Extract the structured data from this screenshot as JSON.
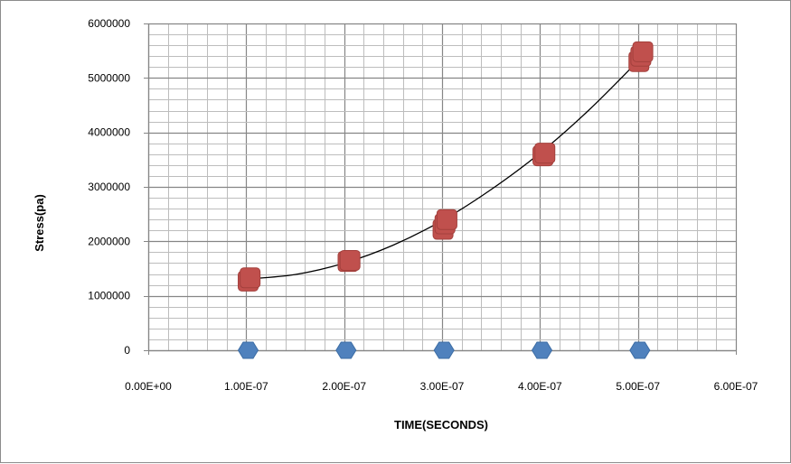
{
  "chart_data": {
    "type": "scatter",
    "title": "",
    "xlabel": "TIME(SECONDS)",
    "ylabel": "Stress(pa)",
    "xlim": [
      0,
      6e-07
    ],
    "ylim": [
      0,
      6000000
    ],
    "x_major_step": 1e-07,
    "x_minor_per_major": 5,
    "y_major_step": 1000000,
    "y_minor_per_major": 5,
    "grid": true,
    "legend": "none",
    "x_tick_labels": [
      "0.00E+00",
      "1.00E-07",
      "2.00E-07",
      "3.00E-07",
      "4.00E-07",
      "5.00E-07",
      "6.00E-07"
    ],
    "y_tick_labels": [
      "0",
      "1000000",
      "2000000",
      "3000000",
      "4000000",
      "5000000",
      "6000000"
    ],
    "series": [
      {
        "marker": "square",
        "color": "#c0504d",
        "points": [
          {
            "x": 1.02e-07,
            "y": 1270000
          },
          {
            "x": 1.04e-07,
            "y": 1330000
          },
          {
            "x": 2.04e-07,
            "y": 1630000
          },
          {
            "x": 2.06e-07,
            "y": 1650000
          },
          {
            "x": 3.01e-07,
            "y": 2220000
          },
          {
            "x": 3.03e-07,
            "y": 2320000
          },
          {
            "x": 3.05e-07,
            "y": 2400000
          },
          {
            "x": 4.03e-07,
            "y": 3570000
          },
          {
            "x": 4.05e-07,
            "y": 3620000
          },
          {
            "x": 5.01e-07,
            "y": 5300000
          },
          {
            "x": 5.03e-07,
            "y": 5400000
          },
          {
            "x": 5.05e-07,
            "y": 5480000
          }
        ]
      },
      {
        "marker": "hexagon",
        "color": "#4f81bd",
        "points": [
          {
            "x": 1.02e-07,
            "y": 0
          },
          {
            "x": 2.02e-07,
            "y": 0
          },
          {
            "x": 3.02e-07,
            "y": 0
          },
          {
            "x": 4.02e-07,
            "y": 0
          },
          {
            "x": 5.02e-07,
            "y": 0
          }
        ]
      }
    ],
    "trendline": {
      "type": "polynomial",
      "color": "#000000",
      "x": [
        1e-07,
        1.5e-07,
        2e-07,
        2.5e-07,
        3e-07,
        3.5e-07,
        4e-07,
        4.5e-07,
        5e-07,
        5.05e-07
      ],
      "y": [
        1310000,
        1390000,
        1600000,
        1930000,
        2380000,
        2950000,
        3620000,
        4410000,
        5310000,
        5420000
      ]
    }
  }
}
